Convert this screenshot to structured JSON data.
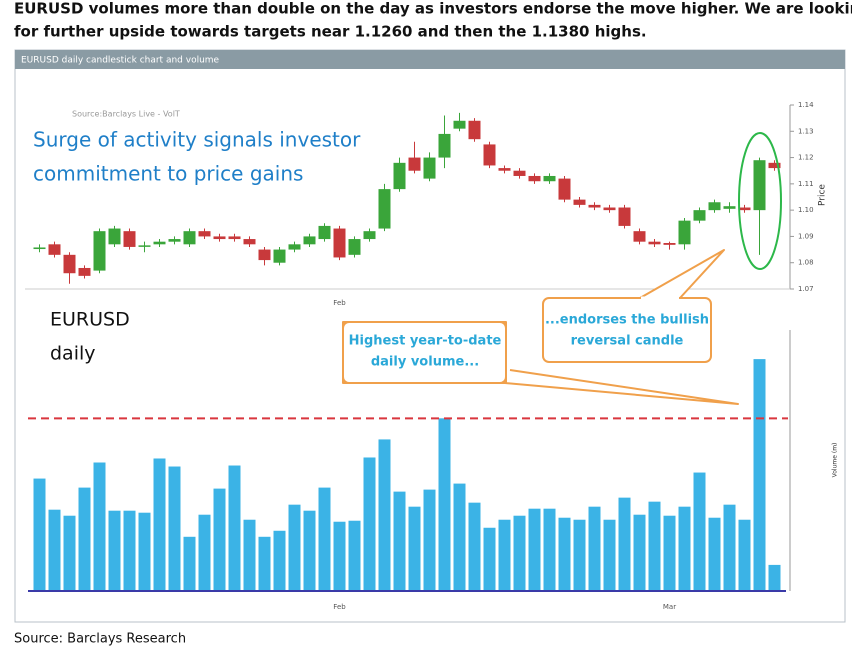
{
  "intro": [
    "EURUSD volumes more than double on the day as investors endorse the move higher. We are looking",
    "for further upside towards targets near 1.1260 and then the 1.1380 highs."
  ],
  "panel_title": "EURUSD daily candlestick chart and volume",
  "watermark": "Source:Barclays Live - VolT",
  "headline": [
    "Surge of activity signals investor",
    "commitment to price gains"
  ],
  "label": [
    "EURUSD",
    "daily"
  ],
  "callouts": [
    {
      "lines": [
        "Highest  year-to-date",
        "daily volume..."
      ]
    },
    {
      "lines": [
        "...endorses the bullish",
        "reversal candle"
      ]
    }
  ],
  "source": "Source: Barclays Research",
  "chart_data": [
    {
      "type": "candlestick",
      "y_label": "Price",
      "categories": [
        null,
        null,
        null,
        null,
        null,
        null,
        null,
        null,
        null,
        null,
        null,
        null,
        null,
        null,
        null,
        null,
        null,
        null,
        null,
        null,
        "Feb",
        null,
        null,
        null,
        null,
        null,
        null,
        null,
        null,
        null,
        null,
        null,
        null,
        null,
        null,
        null,
        null,
        null,
        null,
        null,
        null,
        null,
        null,
        null,
        null,
        null,
        null,
        null,
        null,
        null
      ],
      "open": [
        1.0852,
        1.087,
        1.083,
        1.078,
        1.077,
        1.087,
        1.092,
        1.0862,
        1.087,
        1.088,
        1.087,
        1.092,
        1.09,
        1.09,
        1.089,
        1.085,
        1.08,
        1.085,
        1.087,
        1.089,
        1.093,
        1.083,
        1.089,
        1.093,
        1.108,
        1.12,
        1.112,
        1.12,
        1.131,
        1.134,
        1.125,
        1.116,
        1.115,
        1.113,
        1.111,
        1.112,
        1.104,
        1.102,
        1.101,
        1.101,
        1.092,
        1.088,
        1.0875,
        1.087,
        1.096,
        1.1,
        1.1005,
        1.101,
        1.1,
        1.118
      ],
      "high": [
        1.087,
        1.088,
        1.084,
        1.079,
        1.093,
        1.094,
        1.093,
        1.088,
        1.089,
        1.09,
        1.093,
        1.093,
        1.091,
        1.091,
        1.09,
        1.086,
        1.086,
        1.088,
        1.091,
        1.095,
        1.094,
        1.09,
        1.093,
        1.11,
        1.12,
        1.126,
        1.122,
        1.136,
        1.137,
        1.135,
        1.126,
        1.117,
        1.116,
        1.114,
        1.114,
        1.113,
        1.105,
        1.103,
        1.102,
        1.102,
        1.093,
        1.089,
        1.088,
        1.097,
        1.101,
        1.104,
        1.103,
        1.102,
        1.12,
        1.119
      ],
      "low": [
        1.084,
        1.082,
        1.072,
        1.074,
        1.076,
        1.086,
        1.085,
        1.084,
        1.086,
        1.087,
        1.086,
        1.089,
        1.088,
        1.088,
        1.086,
        1.079,
        1.079,
        1.084,
        1.086,
        1.088,
        1.081,
        1.082,
        1.088,
        1.092,
        1.107,
        1.114,
        1.111,
        1.116,
        1.13,
        1.126,
        1.116,
        1.114,
        1.112,
        1.11,
        1.11,
        1.103,
        1.101,
        1.1,
        1.099,
        1.093,
        1.087,
        1.086,
        1.085,
        1.085,
        1.095,
        1.099,
        1.099,
        1.099,
        1.083,
        1.115
      ],
      "close": [
        1.0858,
        1.083,
        1.076,
        1.075,
        1.092,
        1.093,
        1.086,
        1.0866,
        1.088,
        1.089,
        1.092,
        1.09,
        1.089,
        1.089,
        1.087,
        1.081,
        1.085,
        1.087,
        1.09,
        1.094,
        1.082,
        1.089,
        1.092,
        1.108,
        1.118,
        1.115,
        1.12,
        1.129,
        1.134,
        1.127,
        1.117,
        1.115,
        1.113,
        1.111,
        1.113,
        1.104,
        1.102,
        1.101,
        1.1,
        1.094,
        1.088,
        1.087,
        1.0868,
        1.096,
        1.1,
        1.103,
        1.1015,
        1.1,
        1.119,
        1.116
      ],
      "up_color": "#3aa53a",
      "down_color": "#c8393b",
      "ylim": [
        1.07,
        1.14
      ],
      "yticks": [
        {
          "value": 1.07,
          "label": "1.07"
        },
        {
          "value": 1.08,
          "label": "1.08"
        },
        {
          "value": 1.09,
          "label": "1.09"
        },
        {
          "value": 1.1,
          "label": "1.10"
        },
        {
          "value": 1.11,
          "label": "1.11"
        },
        {
          "value": 1.12,
          "label": "1.12"
        },
        {
          "value": 1.13,
          "label": "1.13"
        },
        {
          "value": 1.14,
          "label": "1.14"
        }
      ]
    },
    {
      "type": "bar",
      "y_label": "Volume (m)",
      "categories": [
        null,
        null,
        null,
        null,
        null,
        null,
        null,
        null,
        null,
        null,
        null,
        null,
        null,
        null,
        null,
        null,
        null,
        null,
        null,
        null,
        "Feb",
        null,
        null,
        null,
        null,
        null,
        null,
        null,
        null,
        null,
        null,
        null,
        null,
        null,
        null,
        null,
        null,
        null,
        null,
        null,
        null,
        null,
        "Mar",
        null,
        null,
        null,
        null,
        null,
        null,
        null
      ],
      "values": [
        112,
        81,
        75,
        103,
        128,
        80,
        80,
        78,
        132,
        124,
        54,
        76,
        102,
        125,
        71,
        54,
        60,
        86,
        80,
        103,
        69,
        70,
        133,
        151,
        99,
        84,
        101,
        172,
        107,
        88,
        63,
        71,
        75,
        82,
        82,
        73,
        71,
        84,
        71,
        93,
        76,
        89,
        75,
        84,
        118,
        73,
        86,
        71,
        231,
        26
      ],
      "color": "#3bb3e6",
      "reference_line": 172,
      "reference_color": "#d9363e",
      "ylim": [
        0,
        260
      ]
    }
  ]
}
